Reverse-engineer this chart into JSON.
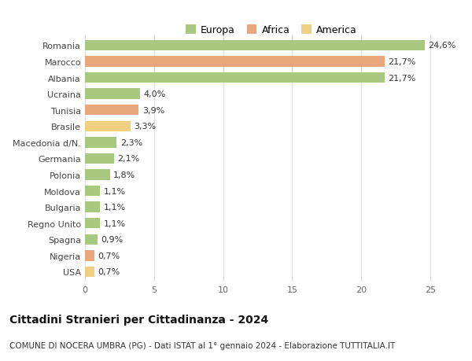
{
  "categories": [
    "Romania",
    "Marocco",
    "Albania",
    "Ucraina",
    "Tunisia",
    "Brasile",
    "Macedonia d/N.",
    "Germania",
    "Polonia",
    "Moldova",
    "Bulgaria",
    "Regno Unito",
    "Spagna",
    "Nigeria",
    "USA"
  ],
  "values": [
    24.6,
    21.7,
    21.7,
    4.0,
    3.9,
    3.3,
    2.3,
    2.1,
    1.8,
    1.1,
    1.1,
    1.1,
    0.9,
    0.7,
    0.7
  ],
  "labels": [
    "24,6%",
    "21,7%",
    "21,7%",
    "4,0%",
    "3,9%",
    "3,3%",
    "2,3%",
    "2,1%",
    "1,8%",
    "1,1%",
    "1,1%",
    "1,1%",
    "0,9%",
    "0,7%",
    "0,7%"
  ],
  "continents": [
    "Europa",
    "Africa",
    "Europa",
    "Europa",
    "Africa",
    "America",
    "Europa",
    "Europa",
    "Europa",
    "Europa",
    "Europa",
    "Europa",
    "Europa",
    "Africa",
    "America"
  ],
  "colors": {
    "Europa": "#a8c97f",
    "Africa": "#e8a87c",
    "America": "#f0d080"
  },
  "xlim": [
    0,
    27
  ],
  "xticks": [
    0,
    5,
    10,
    15,
    20,
    25
  ],
  "title": "Cittadini Stranieri per Cittadinanza - 2024",
  "subtitle": "COMUNE DI NOCERA UMBRA (PG) - Dati ISTAT al 1° gennaio 2024 - Elaborazione TUTTITALIA.IT",
  "title_fontsize": 10,
  "subtitle_fontsize": 7.5,
  "background_color": "#ffffff",
  "grid_color": "#dddddd",
  "bar_height": 0.65,
  "label_fontsize": 8,
  "tick_fontsize": 8
}
